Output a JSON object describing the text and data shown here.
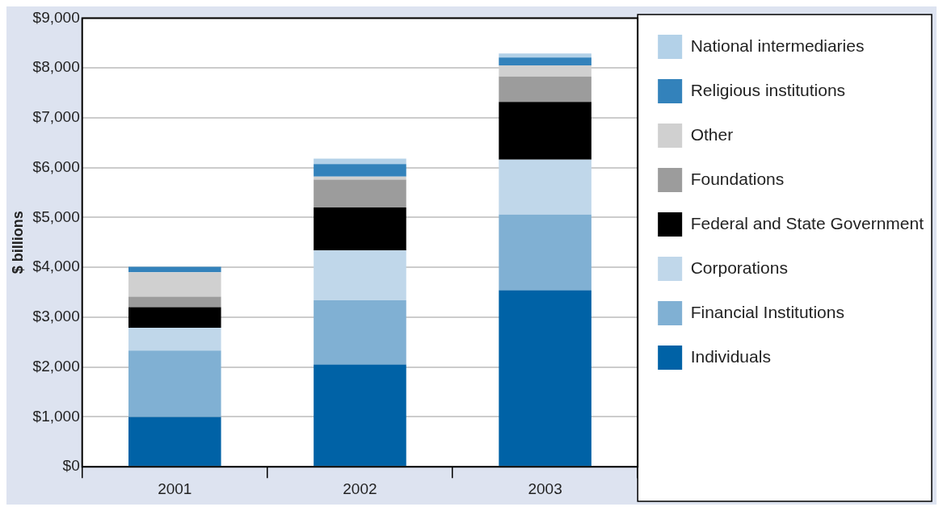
{
  "chart_data": {
    "type": "bar",
    "stacked": true,
    "ylabel": "$ billions",
    "categories": [
      "2001",
      "2002",
      "2003"
    ],
    "series": [
      {
        "name": "Individuals",
        "color": "#0062a6",
        "values": [
          1000,
          2050,
          3540
        ]
      },
      {
        "name": "Financial Institutions",
        "color": "#80b0d3",
        "values": [
          1330,
          1290,
          1520
        ]
      },
      {
        "name": "Corporations",
        "color": "#c0d7ea",
        "values": [
          460,
          1000,
          1100
        ]
      },
      {
        "name": "Federal and State Government",
        "color": "#000000",
        "values": [
          410,
          860,
          1160
        ]
      },
      {
        "name": "Foundations",
        "color": "#9c9c9c",
        "values": [
          210,
          560,
          510
        ]
      },
      {
        "name": "Other",
        "color": "#d0d0d0",
        "values": [
          490,
          60,
          220
        ]
      },
      {
        "name": "Religious institutions",
        "color": "#3382bb",
        "values": [
          110,
          250,
          160
        ]
      },
      {
        "name": "National intermediaries",
        "color": "#b3d1e8",
        "values": [
          0,
          110,
          80
        ]
      }
    ],
    "ylim": [
      0,
      9000
    ],
    "yticks": [
      {
        "value": 0,
        "label": "$0"
      },
      {
        "value": 1000,
        "label": "$1,000"
      },
      {
        "value": 2000,
        "label": "$2,000"
      },
      {
        "value": 3000,
        "label": "$3,000"
      },
      {
        "value": 4000,
        "label": "$4,000"
      },
      {
        "value": 5000,
        "label": "$5,000"
      },
      {
        "value": 6000,
        "label": "$6,000"
      },
      {
        "value": 7000,
        "label": "$7,000"
      },
      {
        "value": 8000,
        "label": "$8,000"
      },
      {
        "value": 9000,
        "label": "$9,000"
      }
    ],
    "grid": "y",
    "legend": "right"
  }
}
